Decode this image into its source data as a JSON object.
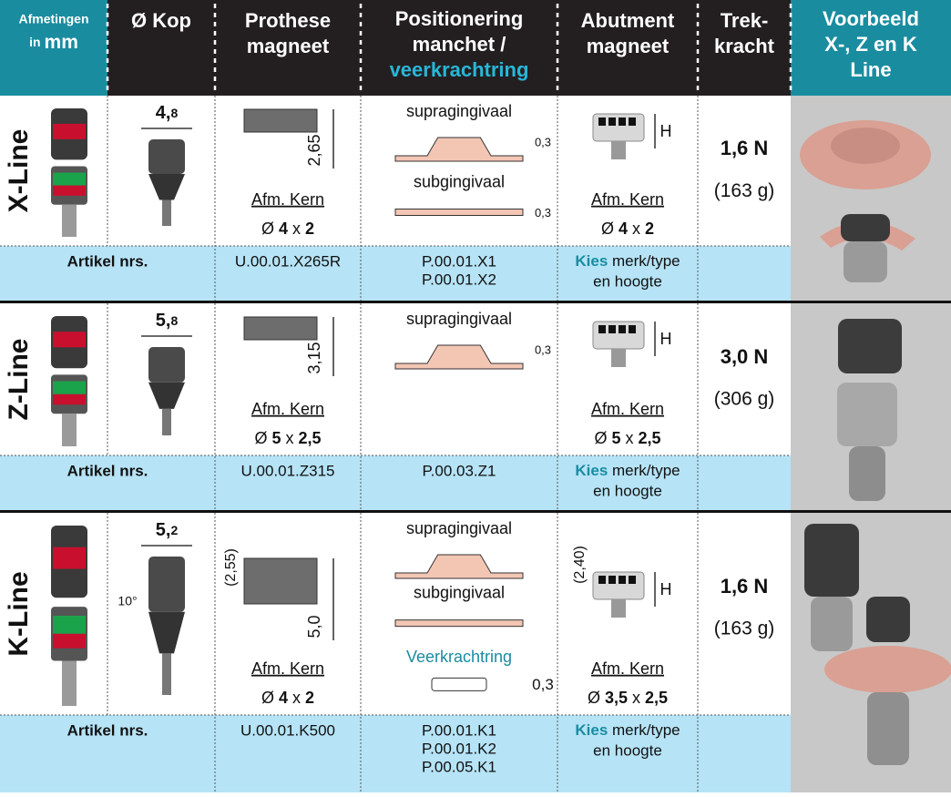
{
  "header": {
    "first": {
      "line1": "Afmetingen",
      "line2_small": "in",
      "line2_big": "mm"
    },
    "columns": [
      {
        "lines": [
          "Ø Kop"
        ]
      },
      {
        "lines": [
          "Prothese",
          "magneet"
        ]
      },
      {
        "lines": [
          "Positionering",
          "manchet /",
          "veerkrachtring"
        ]
      },
      {
        "lines": [
          "Abutment",
          "magneet"
        ]
      },
      {
        "lines": [
          "Trek-",
          "kracht"
        ]
      },
      {
        "lines": [
          "Voorbeeld",
          "X-, Z en K",
          "Line"
        ]
      }
    ]
  },
  "rows": [
    {
      "name": "X-Line",
      "kop": [
        "4,",
        "8"
      ],
      "prothese": {
        "height": "2,65",
        "kern_label": "Afm. Kern",
        "kern": [
          "Ø ",
          "4",
          " x ",
          "2"
        ]
      },
      "positionering": [
        {
          "label": "supragingivaal",
          "thickness": "0,3"
        },
        {
          "label": "subgingivaal",
          "thickness": "0,3"
        }
      ],
      "abutment": {
        "h": "H",
        "kern_label": "Afm. Kern",
        "kern": [
          "Ø ",
          "4",
          " x ",
          "2"
        ]
      },
      "force": "1,6 N",
      "mass": "(163 g)",
      "article": {
        "label": "Artikel nrs.",
        "prothese": [
          "U.00.01.X265R"
        ],
        "positionering": [
          "P.00.01.X1",
          "P.00.01.X2"
        ],
        "abutment_kies": "Kies",
        "abutment_rest": " merk/type",
        "abutment_line2": "en hoogte"
      }
    },
    {
      "name": "Z-Line",
      "kop": [
        "5,",
        "8"
      ],
      "prothese": {
        "height": "3,15",
        "kern_label": "Afm. Kern",
        "kern": [
          "Ø ",
          "5",
          " x ",
          "2,5"
        ]
      },
      "positionering": [
        {
          "label": "supragingivaal",
          "thickness": "0,3"
        }
      ],
      "abutment": {
        "h": "H",
        "kern_label": "Afm. Kern",
        "kern": [
          "Ø ",
          "5",
          " x ",
          "2,5"
        ]
      },
      "force": "3,0 N",
      "mass": "(306 g)",
      "article": {
        "label": "Artikel nrs.",
        "prothese": [
          "U.00.01.Z315"
        ],
        "positionering": [
          "P.00.03.Z1"
        ],
        "abutment_kies": "Kies",
        "abutment_rest": " merk/type",
        "abutment_line2": "en hoogte"
      }
    },
    {
      "name": "K-Line",
      "kop": [
        "5,",
        "2"
      ],
      "angle": "10°",
      "prothese": {
        "top": "(2,55)",
        "height": "5,0",
        "kern_label": "Afm. Kern",
        "kern": [
          "Ø ",
          "4",
          " x ",
          "2"
        ]
      },
      "positionering": [
        {
          "label": "supragingivaal"
        },
        {
          "label": "subgingivaal"
        },
        {
          "label": "Veerkrachtring",
          "thickness": "0,3"
        }
      ],
      "abutment": {
        "top": "(2,40)",
        "h": "H",
        "kern_label": "Afm. Kern",
        "kern": [
          "Ø ",
          "3,5",
          " x ",
          "2,5"
        ]
      },
      "force": "1,6 N",
      "mass": "(163 g)",
      "article": {
        "label": "Artikel nrs.",
        "prothese": [
          "U.00.01.K500"
        ],
        "positionering": [
          "P.00.01.K1",
          "P.00.01.K2",
          "P.00.05.K1"
        ],
        "abutment_kies": "Kies",
        "abutment_rest": " merk/type",
        "abutment_line2": "en hoogte"
      }
    }
  ]
}
